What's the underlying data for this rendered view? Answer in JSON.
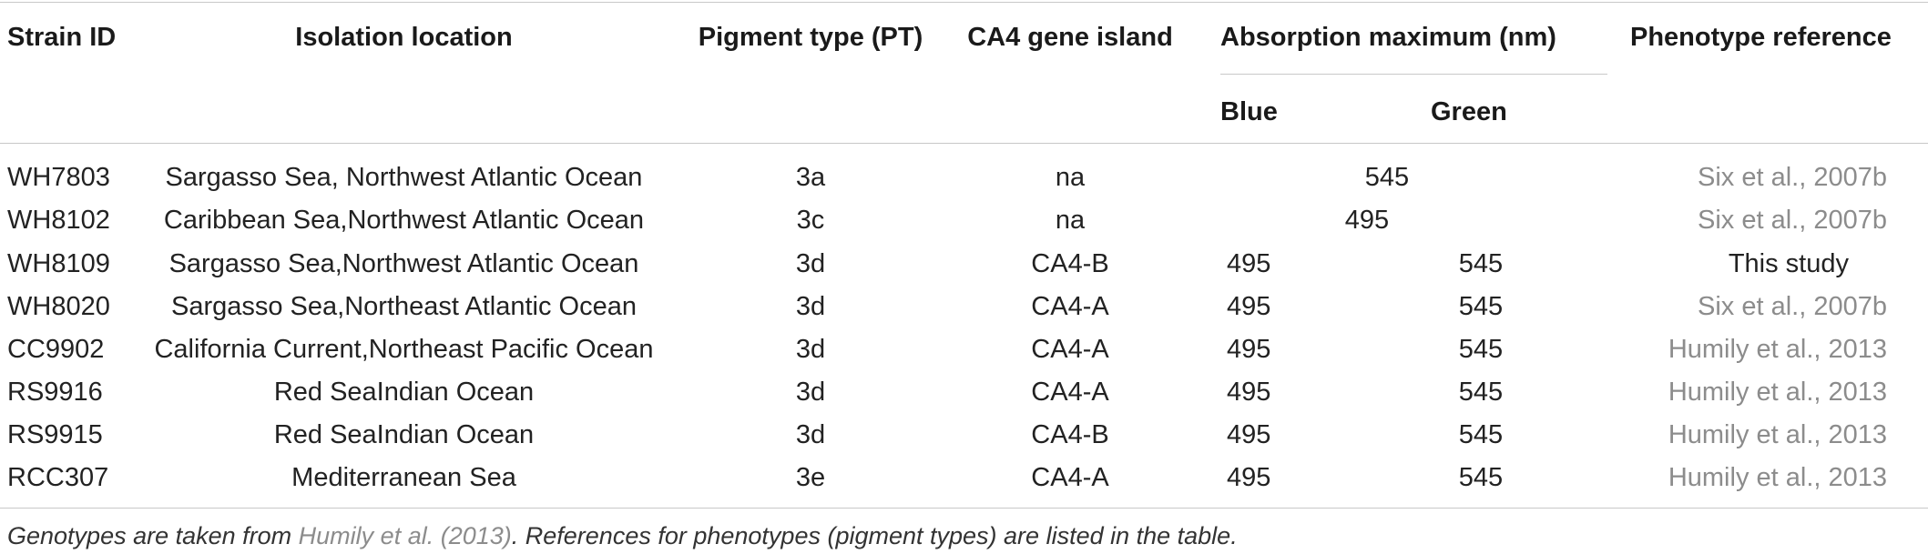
{
  "table": {
    "headers": {
      "strain_id": "Strain ID",
      "isolation_location": "Isolation location",
      "pigment_type": "Pigment type (PT)",
      "ca4_gene_island": "CA4 gene island",
      "absorption_maximum": "Absorption maximum (nm)",
      "blue": "Blue",
      "green": "Green",
      "phenotype_reference": "Phenotype reference"
    },
    "rows": [
      {
        "strain": "WH7803",
        "location": "Sargasso Sea, Northwest Atlantic Ocean",
        "pt": "3a",
        "ca4": "na",
        "blue": "",
        "green": "",
        "merged": "545",
        "ref": "Six et al., 2007b"
      },
      {
        "strain": "WH8102",
        "location": "Caribbean Sea,Northwest Atlantic Ocean",
        "pt": "3c",
        "ca4": "na",
        "blue": "",
        "green": "",
        "merged": "495",
        "ref": "Six et al., 2007b"
      },
      {
        "strain": "WH8109",
        "location": "Sargasso Sea,Northwest Atlantic Ocean",
        "pt": "3d",
        "ca4": "CA4-B",
        "blue": "495",
        "green": "545",
        "merged": "",
        "ref": "This study"
      },
      {
        "strain": "WH8020",
        "location": "Sargasso Sea,Northeast Atlantic Ocean",
        "pt": "3d",
        "ca4": "CA4-A",
        "blue": "495",
        "green": "545",
        "merged": "",
        "ref": "Six et al., 2007b"
      },
      {
        "strain": "CC9902",
        "location": "California Current,Northeast Pacific Ocean",
        "pt": "3d",
        "ca4": "CA4-A",
        "blue": "495",
        "green": "545",
        "merged": "",
        "ref": "Humily et al., 2013"
      },
      {
        "strain": "RS9916",
        "location": "Red SeaIndian Ocean",
        "pt": "3d",
        "ca4": "CA4-A",
        "blue": "495",
        "green": "545",
        "merged": "",
        "ref": "Humily et al., 2013"
      },
      {
        "strain": "RS9915",
        "location": "Red SeaIndian Ocean",
        "pt": "3d",
        "ca4": "CA4-B",
        "blue": "495",
        "green": "545",
        "merged": "",
        "ref": "Humily et al., 2013"
      },
      {
        "strain": "RCC307",
        "location": "Mediterranean Sea",
        "pt": "3e",
        "ca4": "CA4-A",
        "blue": "495",
        "green": "545",
        "merged": "",
        "ref": "Humily et al., 2013"
      }
    ]
  },
  "caption": {
    "prefix": "Genotypes are taken from ",
    "link": "Humily et al. (2013)",
    "suffix": ". References for phenotypes (pigment types) are listed in the table."
  },
  "colors": {
    "reference_link": "#8c8c8c",
    "rule": "#c8c8c8"
  }
}
